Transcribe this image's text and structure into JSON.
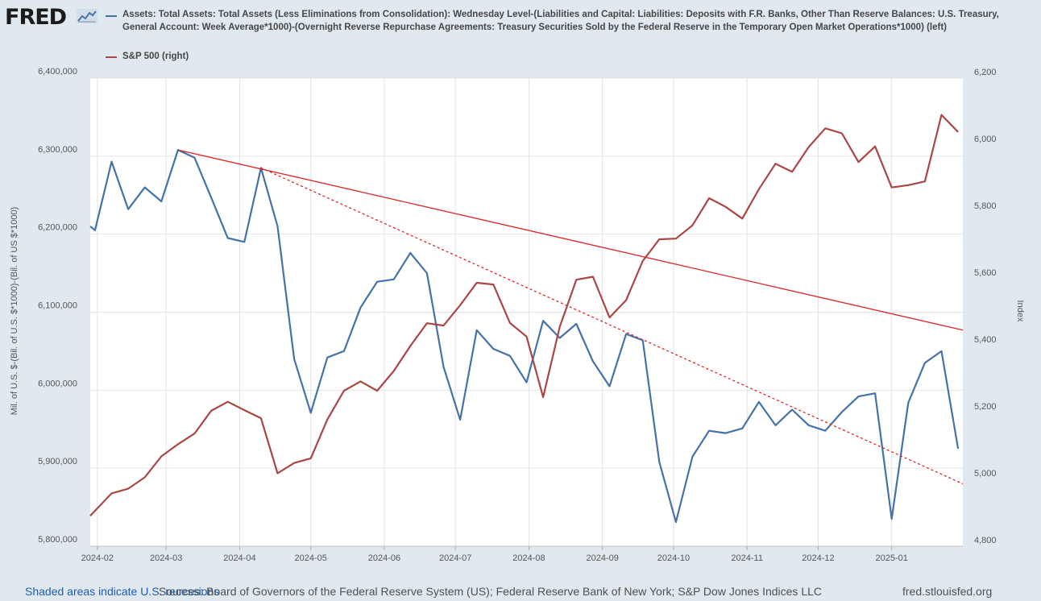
{
  "header": {
    "logo": "FRED",
    "logo_icon": "chart-line-icon"
  },
  "footer": {
    "shaded_note": "Shaded areas indicate U.S. recessions",
    "sources": "Sources: Board of Governors of the Federal Reserve System (US); Federal Reserve Bank of New York; S&P Dow Jones Indices LLC",
    "site": "fred.stlouisfed.org"
  },
  "chart_data": {
    "type": "line",
    "title": "",
    "xlabel": "",
    "ylabel_left": "Mil. of U.S. $-(Bil. of U.S. $*1000)-(Bil. of US $*1000)",
    "ylabel_right": "Index",
    "x_ticks": [
      "2024-02",
      "2024-03",
      "2024-04",
      "2024-05",
      "2024-06",
      "2024-07",
      "2024-08",
      "2024-09",
      "2024-10",
      "2024-11",
      "2024-12",
      "2025-01"
    ],
    "x_range": [
      "2024-01-29",
      "2025-01-31"
    ],
    "y_left": {
      "range": [
        5800000,
        6400000
      ],
      "ticks": [
        5800000,
        5900000,
        6000000,
        6100000,
        6200000,
        6300000,
        6400000
      ],
      "tick_labels": [
        "5,800,000",
        "5,900,000",
        "6,000,000",
        "6,100,000",
        "6,200,000",
        "6,300,000",
        "6,400,000"
      ]
    },
    "y_right": {
      "range": [
        4800,
        6200
      ],
      "ticks": [
        4800,
        5000,
        5200,
        5400,
        5600,
        5800,
        6000,
        6200
      ],
      "tick_labels": [
        "4,800",
        "5,000",
        "5,200",
        "5,400",
        "5,600",
        "5,800",
        "6,000",
        "6,200"
      ]
    },
    "grid": true,
    "legend_placement": "top",
    "series": [
      {
        "name": "Assets: Total Assets: Total Assets (Less Eliminations from Consolidation): Wednesday Level-(Liabilities and Capital: Liabilities: Deposits with F.R. Banks, Other Than Reserve Balances: U.S. Treasury, General Account: Week Average*1000)-(Overnight Reverse Repurchase Agreements: Treasury Securities Sold by the Federal Reserve in the Temporary Open Market Operations*1000) (left)",
        "axis": "left",
        "color": "#4572a7",
        "points": [
          [
            "2024-01-29",
            6210000
          ],
          [
            "2024-01-31",
            6205000
          ],
          [
            "2024-02-07",
            6293000
          ],
          [
            "2024-02-14",
            6232000
          ],
          [
            "2024-02-21",
            6260000
          ],
          [
            "2024-02-28",
            6242000
          ],
          [
            "2024-03-06",
            6308000
          ],
          [
            "2024-03-13",
            6298000
          ],
          [
            "2024-03-20",
            6247000
          ],
          [
            "2024-03-27",
            6195000
          ],
          [
            "2024-04-03",
            6190000
          ],
          [
            "2024-04-10",
            6285000
          ],
          [
            "2024-04-17",
            6210000
          ],
          [
            "2024-04-24",
            6040000
          ],
          [
            "2024-05-01",
            5971000
          ],
          [
            "2024-05-08",
            6042000
          ],
          [
            "2024-05-15",
            6050000
          ],
          [
            "2024-05-22",
            6106000
          ],
          [
            "2024-05-29",
            6139000
          ],
          [
            "2024-06-05",
            6142000
          ],
          [
            "2024-06-12",
            6176000
          ],
          [
            "2024-06-19",
            6150000
          ],
          [
            "2024-06-26",
            6030000
          ],
          [
            "2024-07-03",
            5962000
          ],
          [
            "2024-07-10",
            6077000
          ],
          [
            "2024-07-17",
            6053000
          ],
          [
            "2024-07-24",
            6044000
          ],
          [
            "2024-07-31",
            6010000
          ],
          [
            "2024-08-07",
            6089000
          ],
          [
            "2024-08-14",
            6067000
          ],
          [
            "2024-08-21",
            6085000
          ],
          [
            "2024-08-28",
            6037000
          ],
          [
            "2024-09-04",
            6005000
          ],
          [
            "2024-09-11",
            6072000
          ],
          [
            "2024-09-18",
            6064000
          ],
          [
            "2024-09-25",
            5908000
          ],
          [
            "2024-10-02",
            5831000
          ],
          [
            "2024-10-09",
            5915000
          ],
          [
            "2024-10-16",
            5948000
          ],
          [
            "2024-10-23",
            5945000
          ],
          [
            "2024-10-30",
            5951000
          ],
          [
            "2024-11-06",
            5985000
          ],
          [
            "2024-11-13",
            5955000
          ],
          [
            "2024-11-20",
            5975000
          ],
          [
            "2024-11-27",
            5955000
          ],
          [
            "2024-12-04",
            5948000
          ],
          [
            "2024-12-11",
            5972000
          ],
          [
            "2024-12-18",
            5992000
          ],
          [
            "2024-12-25",
            5996000
          ],
          [
            "2025-01-01",
            5835000
          ],
          [
            "2025-01-08",
            5984000
          ],
          [
            "2025-01-15",
            6035000
          ],
          [
            "2025-01-22",
            6050000
          ],
          [
            "2025-01-29",
            5925000
          ]
        ]
      },
      {
        "name": "S&P 500 (right)",
        "axis": "right",
        "color": "#aa4643",
        "points": [
          [
            "2024-01-29",
            4891
          ],
          [
            "2024-01-31",
            4906
          ],
          [
            "2024-02-07",
            4958
          ],
          [
            "2024-02-14",
            4972
          ],
          [
            "2024-02-21",
            5006
          ],
          [
            "2024-02-28",
            5069
          ],
          [
            "2024-03-06",
            5105
          ],
          [
            "2024-03-13",
            5137
          ],
          [
            "2024-03-20",
            5205
          ],
          [
            "2024-03-27",
            5232
          ],
          [
            "2024-04-03",
            5207
          ],
          [
            "2024-04-10",
            5183
          ],
          [
            "2024-04-17",
            5018
          ],
          [
            "2024-04-24",
            5049
          ],
          [
            "2024-05-01",
            5063
          ],
          [
            "2024-05-08",
            5179
          ],
          [
            "2024-05-15",
            5265
          ],
          [
            "2024-05-22",
            5293
          ],
          [
            "2024-05-29",
            5265
          ],
          [
            "2024-06-05",
            5324
          ],
          [
            "2024-06-12",
            5399
          ],
          [
            "2024-06-19",
            5467
          ],
          [
            "2024-06-26",
            5460
          ],
          [
            "2024-07-03",
            5521
          ],
          [
            "2024-07-10",
            5588
          ],
          [
            "2024-07-17",
            5583
          ],
          [
            "2024-07-24",
            5468
          ],
          [
            "2024-07-31",
            5427
          ],
          [
            "2024-08-07",
            5246
          ],
          [
            "2024-08-14",
            5456
          ],
          [
            "2024-08-21",
            5597
          ],
          [
            "2024-08-28",
            5606
          ],
          [
            "2024-09-04",
            5484
          ],
          [
            "2024-09-11",
            5536
          ],
          [
            "2024-09-18",
            5653
          ],
          [
            "2024-09-25",
            5718
          ],
          [
            "2024-10-02",
            5720
          ],
          [
            "2024-10-09",
            5760
          ],
          [
            "2024-10-16",
            5841
          ],
          [
            "2024-10-23",
            5815
          ],
          [
            "2024-10-30",
            5780
          ],
          [
            "2024-11-06",
            5868
          ],
          [
            "2024-11-13",
            5944
          ],
          [
            "2024-11-20",
            5920
          ],
          [
            "2024-11-27",
            5994
          ],
          [
            "2024-12-04",
            6050
          ],
          [
            "2024-12-11",
            6035
          ],
          [
            "2024-12-18",
            5949
          ],
          [
            "2024-12-25",
            5996
          ],
          [
            "2025-01-01",
            5873
          ],
          [
            "2025-01-08",
            5880
          ],
          [
            "2025-01-15",
            5891
          ],
          [
            "2025-01-22",
            6090
          ],
          [
            "2025-01-29",
            6039
          ]
        ]
      }
    ],
    "annotations": [
      {
        "kind": "trendline",
        "style": "solid",
        "color": "#e02424",
        "axis": "left",
        "from": [
          "2024-03-06",
          6308000
        ],
        "to": [
          "2025-01-31",
          6077000
        ]
      },
      {
        "kind": "trendline",
        "style": "dotted",
        "color": "#e02424",
        "axis": "left",
        "from": [
          "2024-04-10",
          6285000
        ],
        "to": [
          "2025-01-31",
          5880000
        ]
      }
    ]
  }
}
